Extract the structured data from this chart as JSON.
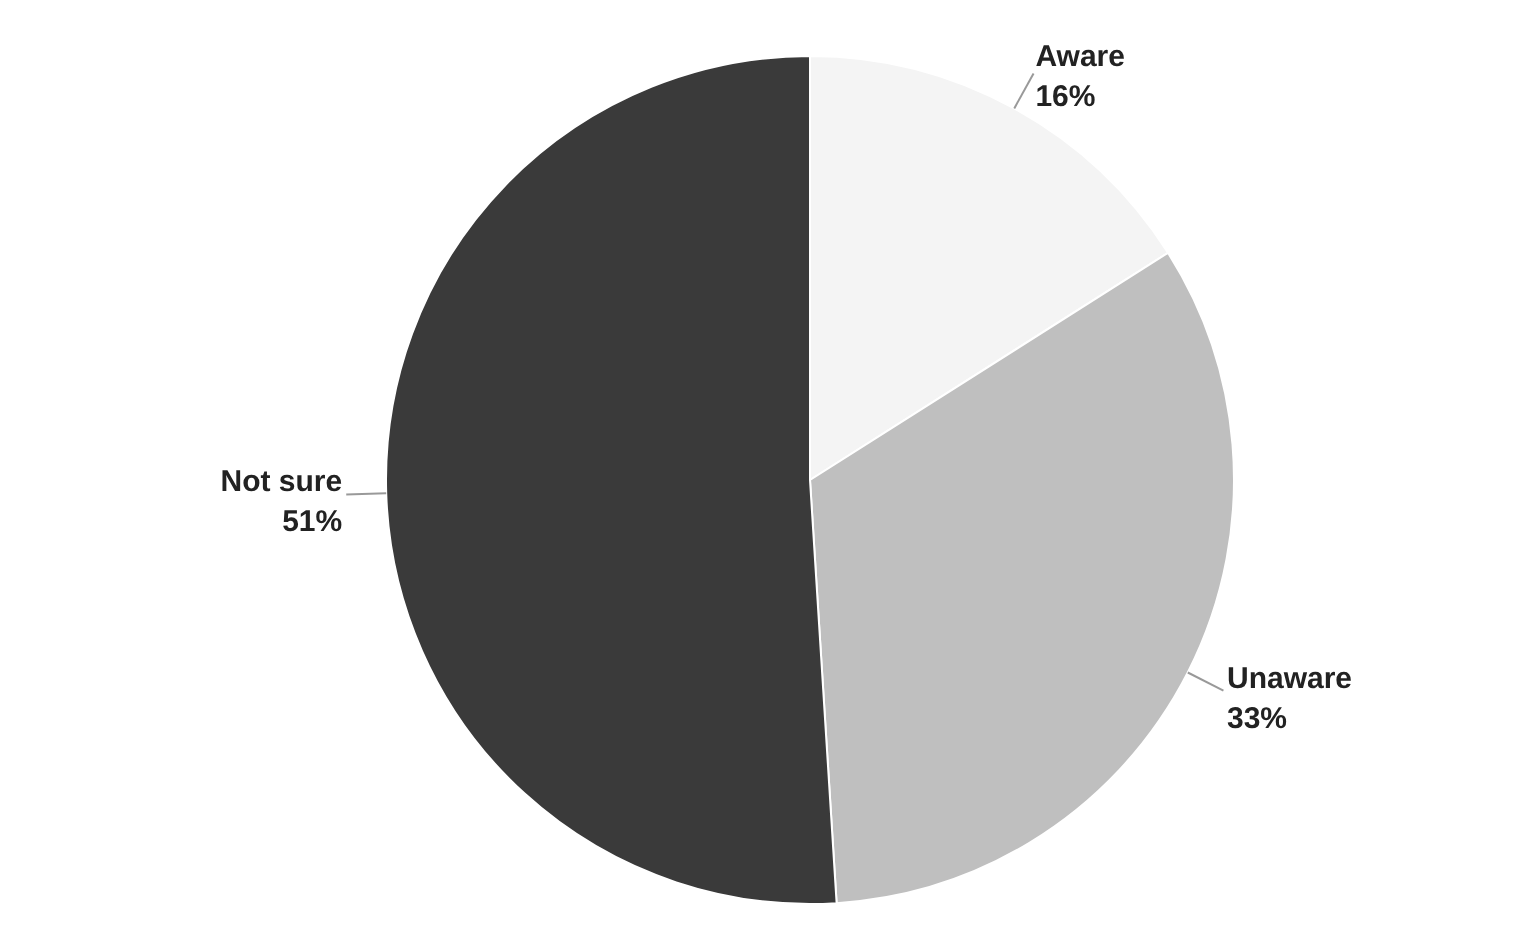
{
  "chart_data": {
    "type": "pie",
    "categories": [
      "Aware",
      "Unaware",
      "Not sure"
    ],
    "values": [
      16,
      33,
      51
    ],
    "value_labels": [
      "16%",
      "33%",
      "51%"
    ],
    "colors": [
      "#f4f4f4",
      "#bfbfbf",
      "#3a3a3a"
    ]
  }
}
